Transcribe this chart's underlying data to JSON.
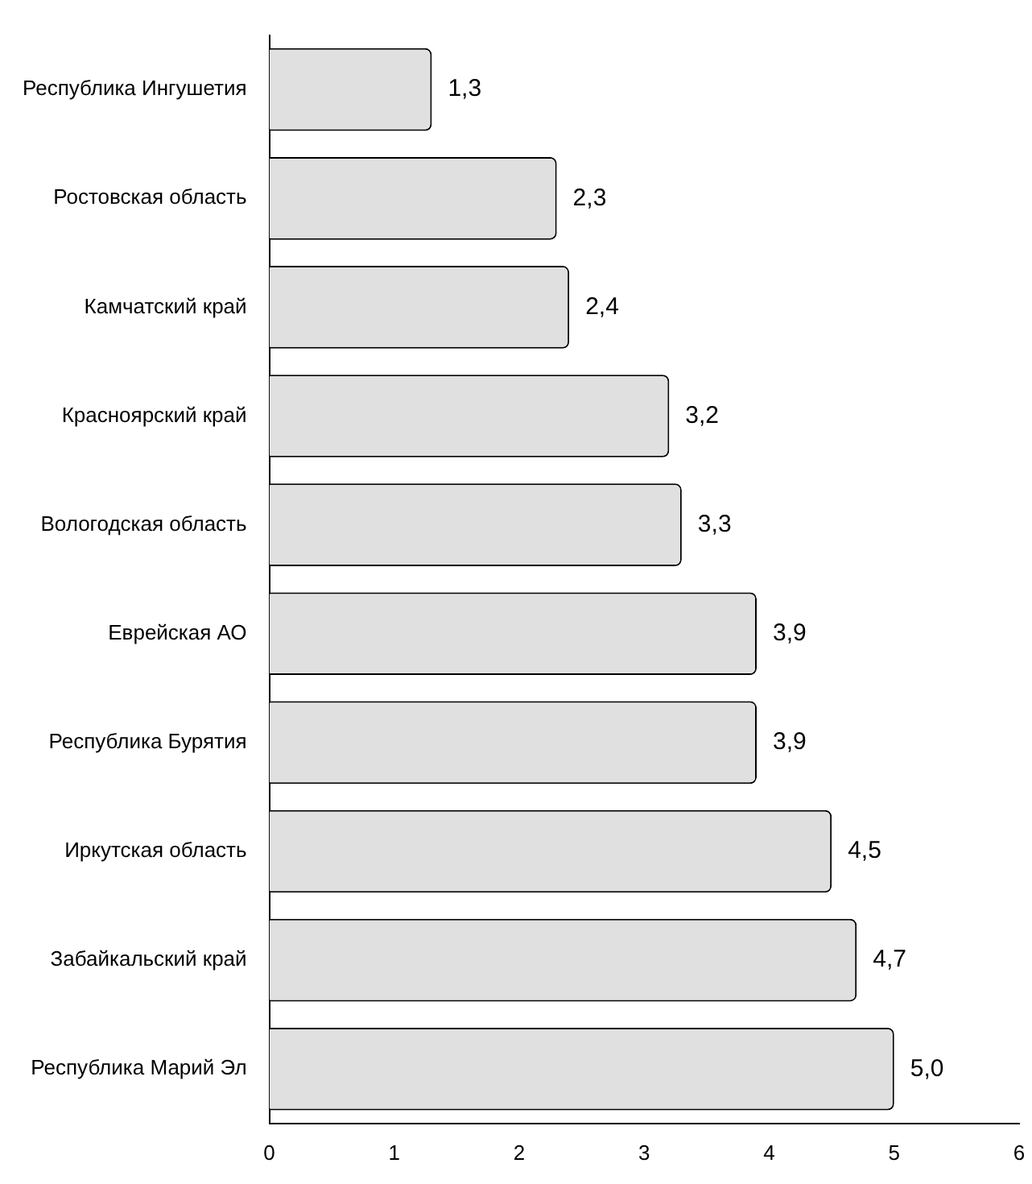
{
  "chart_data": {
    "type": "bar",
    "orientation": "horizontal",
    "categories": [
      "Республика Ингушетия",
      "Ростовская область",
      "Камчатский край",
      "Красноярский край",
      "Вологодская область",
      "Еврейская АО",
      "Республика Бурятия",
      "Иркутская область",
      "Забайкальский край",
      "Республика Марий Эл"
    ],
    "values": [
      1.3,
      2.3,
      2.4,
      3.2,
      3.3,
      3.9,
      3.9,
      4.5,
      4.7,
      5.0
    ],
    "value_labels": [
      "1,3",
      "2,3",
      "2,4",
      "3,2",
      "3,3",
      "3,9",
      "3,9",
      "4,5",
      "4,7",
      "5,0"
    ],
    "color": "#e0e0e0",
    "xlim": [
      0,
      6
    ],
    "xticks": [
      0,
      1,
      2,
      3,
      4,
      5,
      6
    ],
    "grid": false,
    "legend": false
  }
}
